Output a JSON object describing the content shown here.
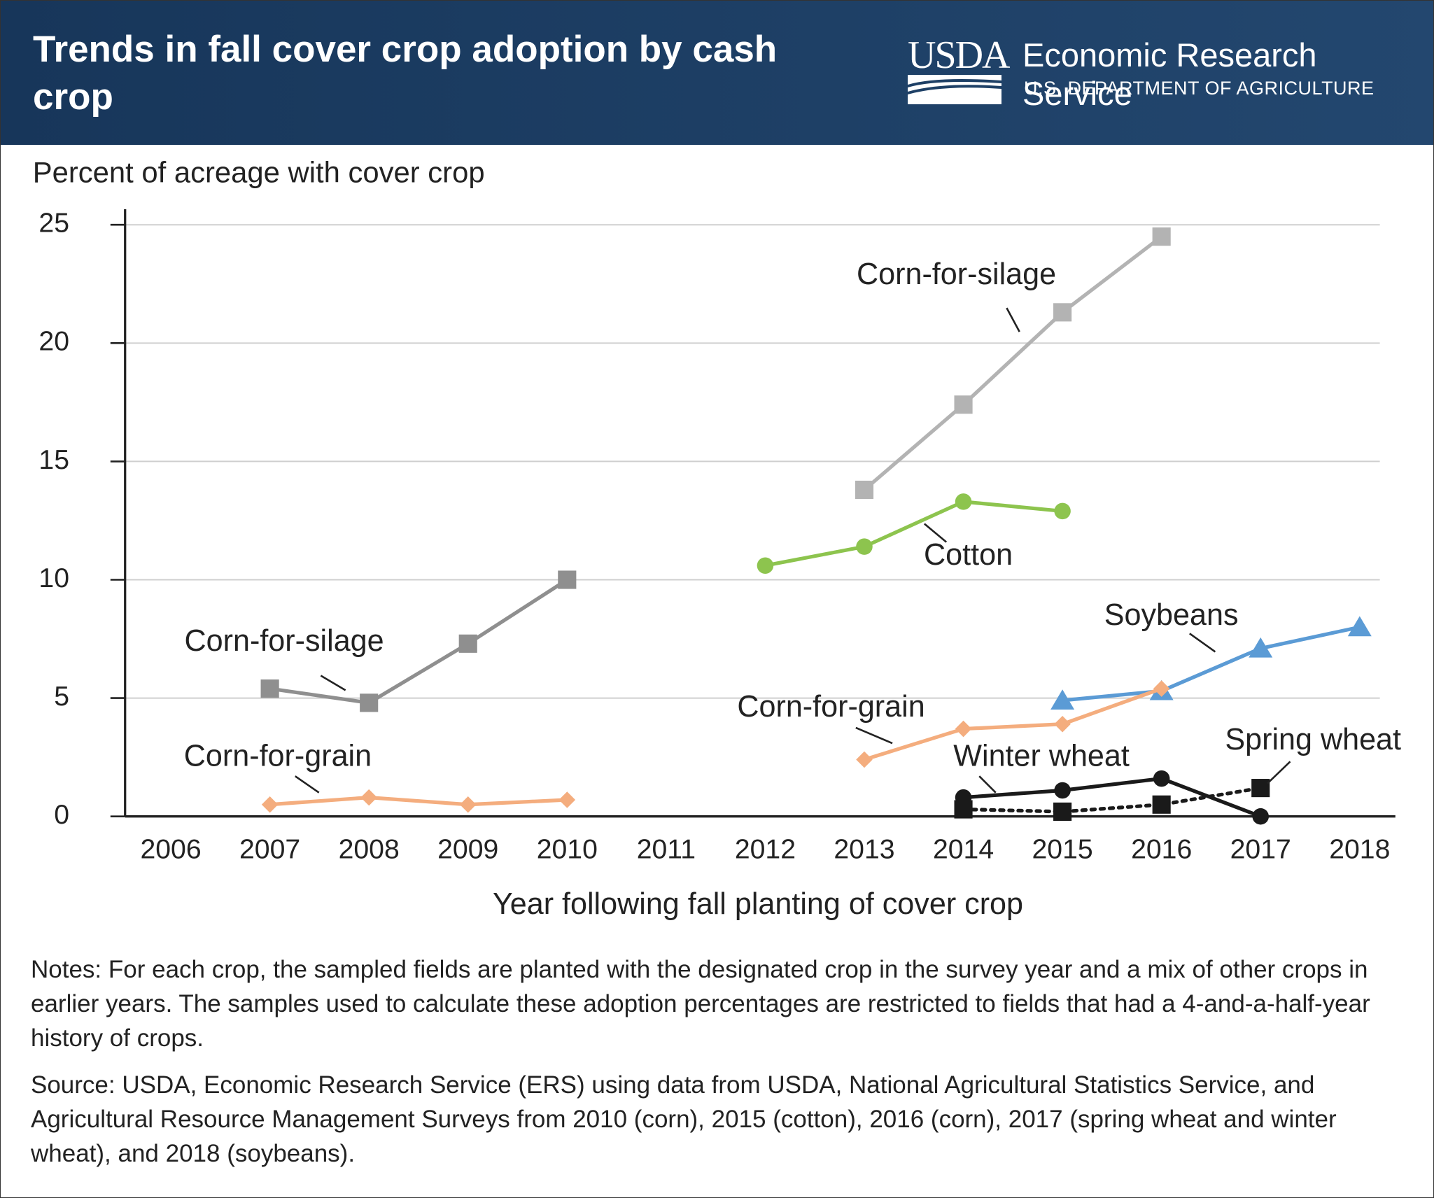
{
  "header": {
    "title": "Trends in fall cover crop adoption by cash crop",
    "logo": "USDA",
    "agency": "Economic Research Service",
    "department": "U.S. DEPARTMENT OF AGRICULTURE"
  },
  "chart_data": {
    "type": "line",
    "y_label": "Percent of acreage with cover crop",
    "x_label": "Year following fall planting of cover crop",
    "categories": [
      "2006",
      "2007",
      "2008",
      "2009",
      "2010",
      "2011",
      "2012",
      "2013",
      "2014",
      "2015",
      "2016",
      "2017",
      "2018"
    ],
    "ylim": [
      0,
      25
    ],
    "yticks": [
      0,
      5,
      10,
      15,
      20,
      25
    ],
    "grid": true,
    "series": [
      {
        "name": "Corn-for-silage",
        "color": "#8f8f8f",
        "marker": "square",
        "dash": "solid",
        "values": [
          null,
          5.4,
          4.8,
          7.3,
          10.0,
          null,
          null,
          null,
          null,
          null,
          null,
          null,
          null
        ]
      },
      {
        "name": "Corn-for-silage",
        "color": "#b3b3b3",
        "marker": "square",
        "dash": "solid",
        "values": [
          null,
          null,
          null,
          null,
          null,
          null,
          null,
          13.8,
          17.4,
          21.3,
          24.5,
          null,
          null
        ]
      },
      {
        "name": "Cotton",
        "color": "#8dc44e",
        "marker": "circle",
        "dash": "solid",
        "values": [
          null,
          null,
          null,
          null,
          null,
          null,
          10.6,
          11.4,
          13.3,
          12.9,
          null,
          null,
          null
        ]
      },
      {
        "name": "Soybeans",
        "color": "#5b9bd5",
        "marker": "triangle",
        "dash": "solid",
        "values": [
          null,
          null,
          null,
          null,
          null,
          null,
          null,
          null,
          null,
          4.9,
          5.3,
          7.1,
          8.0
        ]
      },
      {
        "name": "Corn-for-grain",
        "color": "#f4ad7e",
        "marker": "diamond",
        "dash": "solid",
        "values": [
          null,
          0.5,
          0.8,
          0.5,
          0.7,
          null,
          null,
          null,
          null,
          null,
          null,
          null,
          null
        ]
      },
      {
        "name": "Corn-for-grain",
        "color": "#f4ad7e",
        "marker": "diamond",
        "dash": "solid",
        "values": [
          null,
          null,
          null,
          null,
          null,
          null,
          null,
          2.4,
          3.7,
          3.9,
          5.4,
          null,
          null
        ]
      },
      {
        "name": "Winter wheat",
        "color": "#1a1a1a",
        "marker": "circle",
        "dash": "solid",
        "values": [
          null,
          null,
          null,
          null,
          null,
          null,
          null,
          null,
          0.8,
          1.1,
          1.6,
          0.0,
          null
        ]
      },
      {
        "name": "Spring wheat",
        "color": "#1a1a1a",
        "marker": "square",
        "dash": "dotted",
        "values": [
          null,
          null,
          null,
          null,
          null,
          null,
          null,
          null,
          0.3,
          0.2,
          0.5,
          1.2,
          null
        ]
      }
    ]
  },
  "notes": "Notes: For each crop, the sampled fields are planted with the designated crop in the survey year and a mix of other crops in earlier years. The samples used to calculate these adoption percentages are restricted to fields that had a 4-and-a-half-year history of crops.",
  "source": "Source: USDA, Economic Research Service (ERS) using data from USDA, National Agricultural Statistics Service, and Agricultural Resource Management Surveys from 2010 (corn), 2015 (cotton), 2016 (corn), 2017 (spring wheat and winter wheat), and 2018 (soybeans)."
}
